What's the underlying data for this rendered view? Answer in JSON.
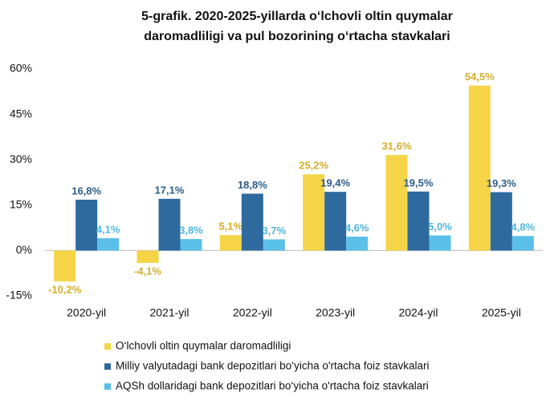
{
  "chart_data": {
    "type": "bar",
    "title": "5-grafik. 2020-2025-yillarda o‘lchovli oltin quymalar daromadliligi va pul bozorining o‘rtacha stavkalari",
    "categories": [
      "2020-yil",
      "2021-yil",
      "2022-yil",
      "2023-yil",
      "2024-yil",
      "2025-yil"
    ],
    "series": [
      {
        "name": "O‘lchovli oltin quymalar daromadliligi",
        "color": "#f5d547",
        "label_color": "#d4ae2a",
        "values": [
          -10.2,
          -4.1,
          5.1,
          25.2,
          31.6,
          54.5
        ],
        "value_labels": [
          "-10,2%",
          "-4,1%",
          "5,1%",
          "25,2%",
          "31,6%",
          "54,5%"
        ]
      },
      {
        "name": "Milliy valyutadagi bank depozitlari bo‘yicha o'rtacha foiz stavkalari",
        "color": "#2e6a9e",
        "label_color": "#2b5c88",
        "values": [
          16.8,
          17.1,
          18.8,
          19.4,
          19.5,
          19.3
        ],
        "value_labels": [
          "16,8%",
          "17,1%",
          "18,8%",
          "19,4%",
          "19,5%",
          "19,3%"
        ]
      },
      {
        "name": "AQSh dollaridagi bank depozitlari bo‘yicha o'rtacha foiz stavkalari",
        "color": "#5bc0e8",
        "label_color": "#4fb6e0",
        "values": [
          4.1,
          3.8,
          3.7,
          4.6,
          5.0,
          4.8
        ],
        "value_labels": [
          "4,1%",
          "3,8%",
          "3,7%",
          "4,6%",
          "5,0%",
          "4,8%"
        ]
      }
    ],
    "ylim": [
      -15,
      60
    ],
    "yticks": [
      {
        "value": -15,
        "label": "-15%"
      },
      {
        "value": 0,
        "label": "0%"
      },
      {
        "value": 15,
        "label": "15%"
      },
      {
        "value": 30,
        "label": "30%"
      },
      {
        "value": 45,
        "label": "45%"
      },
      {
        "value": 60,
        "label": "60%"
      }
    ],
    "grid": false
  }
}
